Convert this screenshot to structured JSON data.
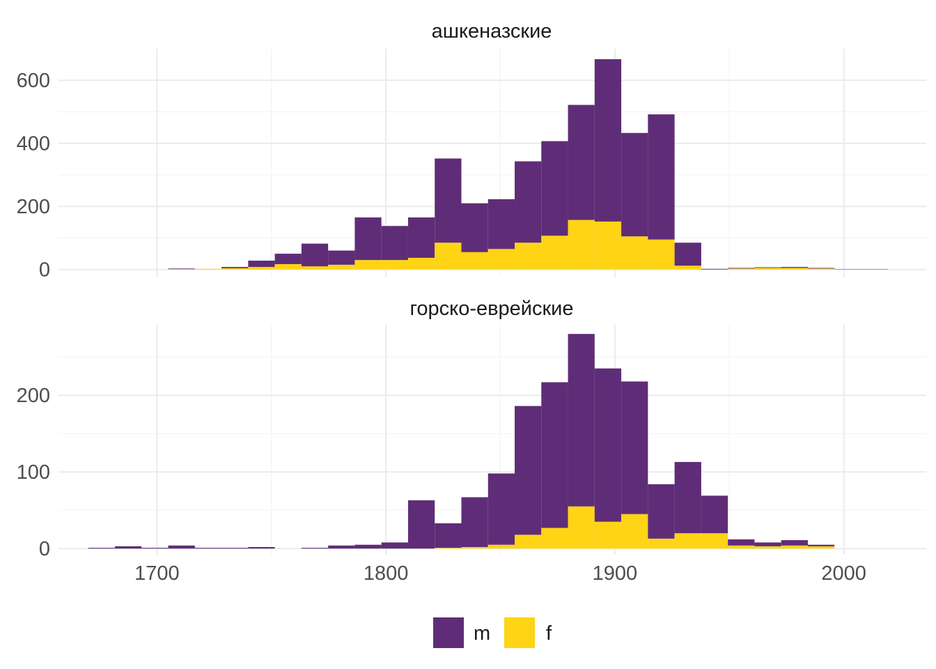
{
  "chart_data": {
    "type": "bar",
    "stacked": true,
    "grid": true,
    "legend_position": "bottom",
    "bin_width": 11.64,
    "x_start": 1670,
    "xlim": [
      1657,
      2036
    ],
    "x_ticks": [
      "1700",
      "1800",
      "1900",
      "2000"
    ],
    "x_tick_values": [
      1700,
      1800,
      1900,
      2000
    ],
    "legend": [
      {
        "label": "m",
        "color": "#5f2d77"
      },
      {
        "label": "f",
        "color": "#fed414"
      }
    ],
    "panels": [
      {
        "title": "ашкеназские",
        "ylim": [
          -25,
          700
        ],
        "y_ticks": [
          "0",
          "200",
          "400",
          "600"
        ],
        "y_tick_values": [
          0,
          200,
          400,
          600
        ],
        "series": [
          {
            "name": "f",
            "values": [
              0,
              0,
              0,
              1,
              2,
              4,
              8,
              17,
              10,
              15,
              30,
              30,
              37,
              85,
              55,
              65,
              85,
              107,
              157,
              152,
              105,
              95,
              12,
              0,
              3,
              5,
              5,
              3,
              0,
              0
            ]
          },
          {
            "name": "m",
            "values": [
              0,
              0,
              0,
              2,
              0,
              4,
              20,
              33,
              72,
              45,
              135,
              108,
              128,
              267,
              155,
              158,
              258,
              300,
              365,
              515,
              328,
              397,
              73,
              2,
              2,
              2,
              3,
              2,
              1,
              1
            ]
          }
        ]
      },
      {
        "title": "горско-еврейские",
        "ylim": [
          -8,
          292
        ],
        "y_ticks": [
          "0",
          "100",
          "200"
        ],
        "y_tick_values": [
          0,
          100,
          200
        ],
        "series": [
          {
            "name": "f",
            "values": [
              0,
              0,
              0,
              0,
              0,
              0,
              0,
              0,
              0,
              0,
              0,
              0,
              0,
              1,
              2,
              5,
              18,
              27,
              55,
              35,
              45,
              13,
              20,
              20,
              4,
              3,
              4,
              3,
              0,
              0
            ]
          },
          {
            "name": "m",
            "values": [
              1,
              3,
              1,
              4,
              1,
              1,
              2,
              0,
              1,
              4,
              5,
              8,
              63,
              32,
              65,
              93,
              168,
              190,
              225,
              200,
              173,
              71,
              93,
              49,
              8,
              5,
              7,
              2,
              0,
              0
            ]
          }
        ]
      }
    ]
  }
}
